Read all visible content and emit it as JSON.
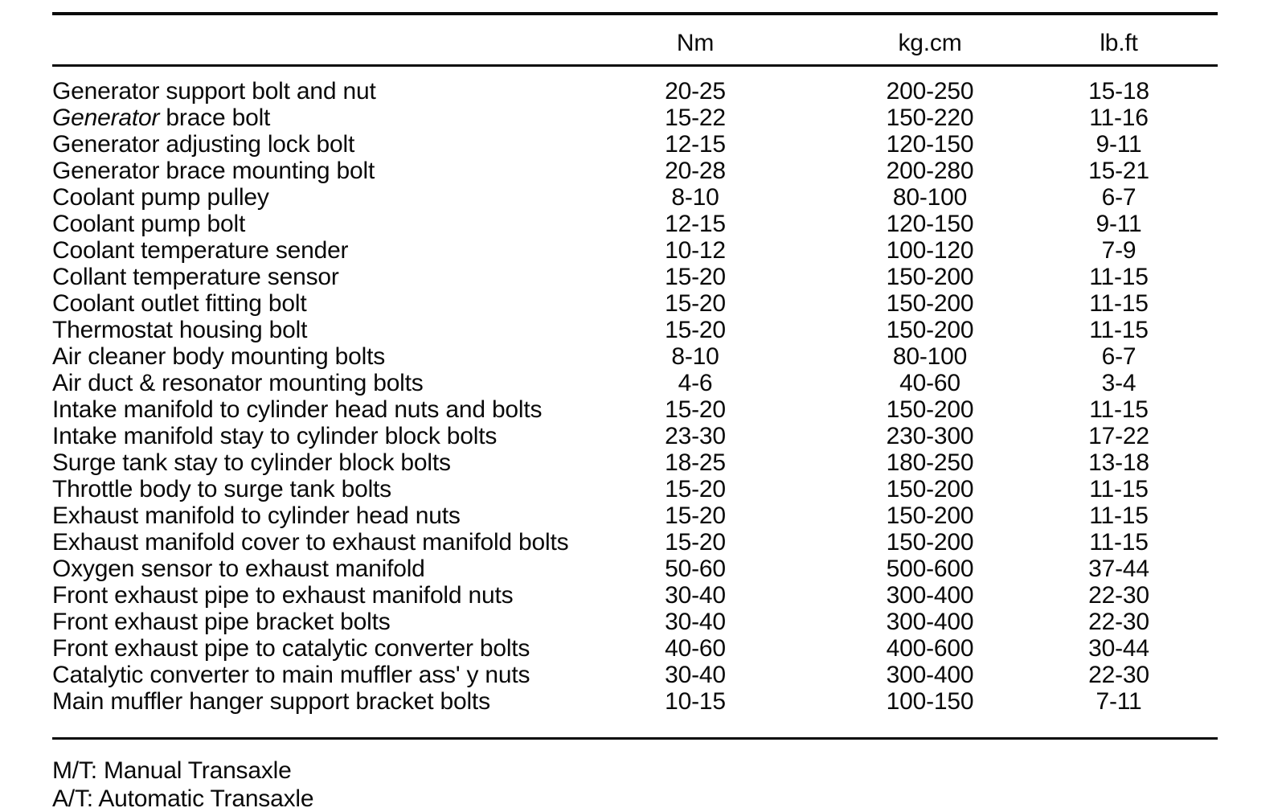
{
  "colors": {
    "ink": "#0a0a0a",
    "paper": "#ffffff"
  },
  "table": {
    "headers": {
      "item": "",
      "nm": "Nm",
      "kgcm": "kg.cm",
      "lbft": "lb.ft"
    },
    "rows": [
      {
        "label": "Generator support bolt and nut",
        "nm": "20-25",
        "kgcm": "200-250",
        "lbft": "15-18"
      },
      {
        "label": "Generator brace bolt",
        "nm": "15-22",
        "kgcm": "150-220",
        "lbft": "11-16",
        "first_word_italic": true
      },
      {
        "label": "Generator adjusting lock bolt",
        "nm": "12-15",
        "kgcm": "120-150",
        "lbft": "9-11"
      },
      {
        "label": "Generator brace mounting bolt",
        "nm": "20-28",
        "kgcm": "200-280",
        "lbft": "15-21"
      },
      {
        "label": "Coolant pump pulley",
        "nm": "8-10",
        "kgcm": "80-100",
        "lbft": "6-7"
      },
      {
        "label": "Coolant pump bolt",
        "nm": "12-15",
        "kgcm": "120-150",
        "lbft": "9-11"
      },
      {
        "label": "Coolant temperature sender",
        "nm": "10-12",
        "kgcm": "100-120",
        "lbft": "7-9"
      },
      {
        "label": "Collant temperature sensor",
        "nm": "15-20",
        "kgcm": "150-200",
        "lbft": "11-15"
      },
      {
        "label": "Coolant outlet fitting bolt",
        "nm": "15-20",
        "kgcm": "150-200",
        "lbft": "11-15"
      },
      {
        "label": "Thermostat housing bolt",
        "nm": "15-20",
        "kgcm": "150-200",
        "lbft": "11-15"
      },
      {
        "label": "Air cleaner body mounting bolts",
        "nm": "8-10",
        "kgcm": "80-100",
        "lbft": "6-7"
      },
      {
        "label": "Air duct & resonator mounting bolts",
        "nm": "4-6",
        "kgcm": "40-60",
        "lbft": "3-4"
      },
      {
        "label": "Intake manifold to cylinder head nuts and bolts",
        "nm": "15-20",
        "kgcm": "150-200",
        "lbft": "11-15"
      },
      {
        "label": "Intake manifold stay to cylinder block bolts",
        "nm": "23-30",
        "kgcm": "230-300",
        "lbft": "17-22"
      },
      {
        "label": "Surge tank stay to cylinder block bolts",
        "nm": "18-25",
        "kgcm": "180-250",
        "lbft": "13-18"
      },
      {
        "label": "Throttle body to surge tank bolts",
        "nm": "15-20",
        "kgcm": "150-200",
        "lbft": "11-15"
      },
      {
        "label": "Exhaust manifold to cylinder head nuts",
        "nm": "15-20",
        "kgcm": "150-200",
        "lbft": "11-15"
      },
      {
        "label": "Exhaust manifold cover to exhaust manifold bolts",
        "nm": "15-20",
        "kgcm": "150-200",
        "lbft": "11-15"
      },
      {
        "label": "Oxygen sensor to exhaust manifold",
        "nm": "50-60",
        "kgcm": "500-600",
        "lbft": "37-44"
      },
      {
        "label": "Front exhaust pipe to exhaust manifold nuts",
        "nm": "30-40",
        "kgcm": "300-400",
        "lbft": "22-30"
      },
      {
        "label": "Front exhaust pipe bracket bolts",
        "nm": "30-40",
        "kgcm": "300-400",
        "lbft": "22-30"
      },
      {
        "label": "Front exhaust pipe to catalytic converter bolts",
        "nm": "40-60",
        "kgcm": "400-600",
        "lbft": "30-44"
      },
      {
        "label": "Catalytic converter to main muffler ass' y nuts",
        "nm": "30-40",
        "kgcm": "300-400",
        "lbft": "22-30"
      },
      {
        "label": "Main muffler hanger support bracket bolts",
        "nm": "10-15",
        "kgcm": "100-150",
        "lbft": "7-11"
      }
    ]
  },
  "footer": {
    "line1": "M/T: Manual Transaxle",
    "line2": "A/T: Automatic Transaxle"
  }
}
